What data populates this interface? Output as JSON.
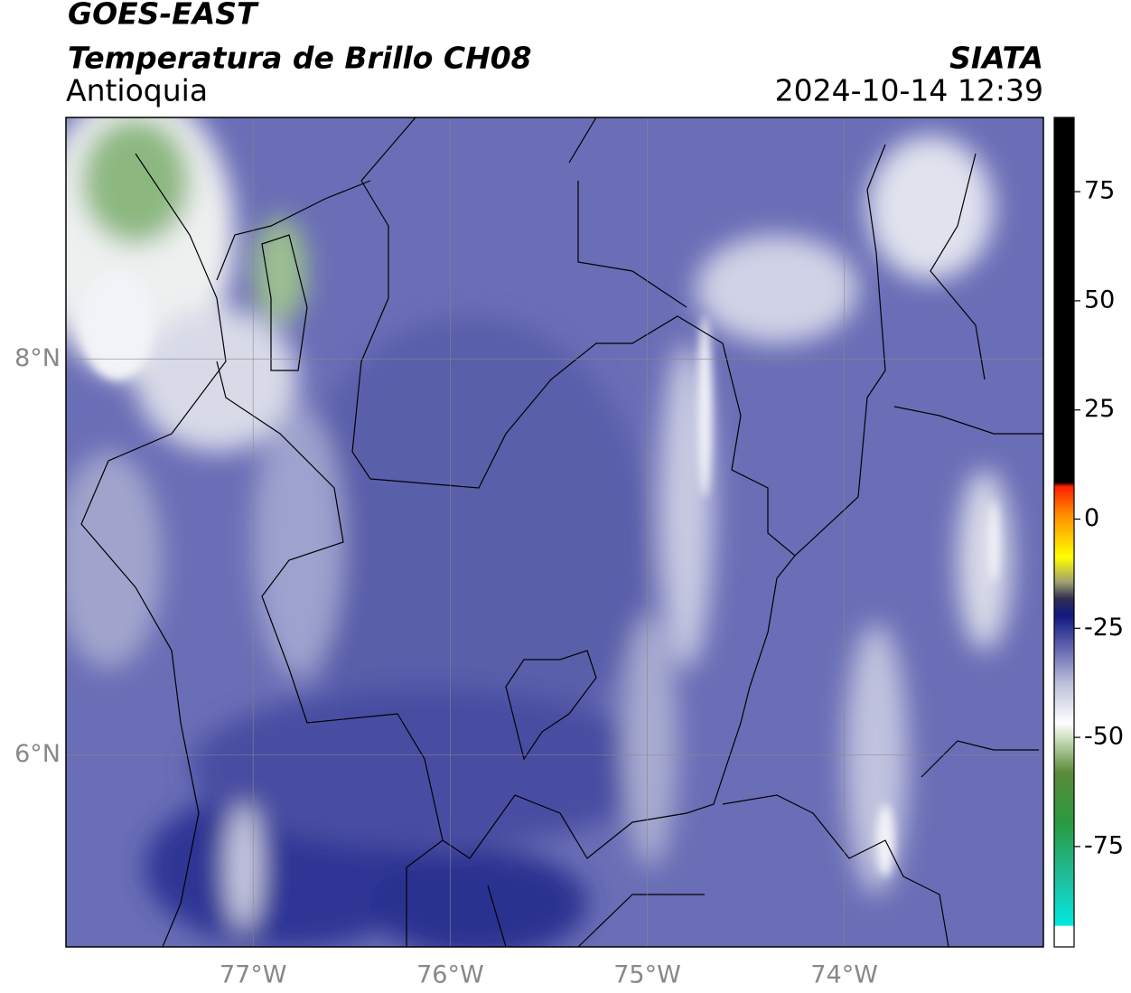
{
  "header": {
    "title": "GOES-EAST",
    "subtitle": "Temperatura de Brillo CH08",
    "region": "Antioquia",
    "source": "SIATA",
    "datetime": "2024-10-14 12:39"
  },
  "map": {
    "xlim": [
      -77.95,
      -72.99
    ],
    "ylim": [
      5.03,
      9.22
    ],
    "xticks": [
      {
        "value": -77,
        "label": "77°W"
      },
      {
        "value": -76,
        "label": "76°W"
      },
      {
        "value": -75,
        "label": "75°W"
      },
      {
        "value": -74,
        "label": "74°W"
      }
    ],
    "yticks": [
      {
        "value": 6,
        "label": "6°N"
      },
      {
        "value": 8,
        "label": "8°N"
      }
    ],
    "grid": true
  },
  "colorbar": {
    "lim": [
      -98,
      92
    ],
    "ticks": [
      75,
      50,
      25,
      0,
      -25,
      -50,
      -75
    ]
  }
}
